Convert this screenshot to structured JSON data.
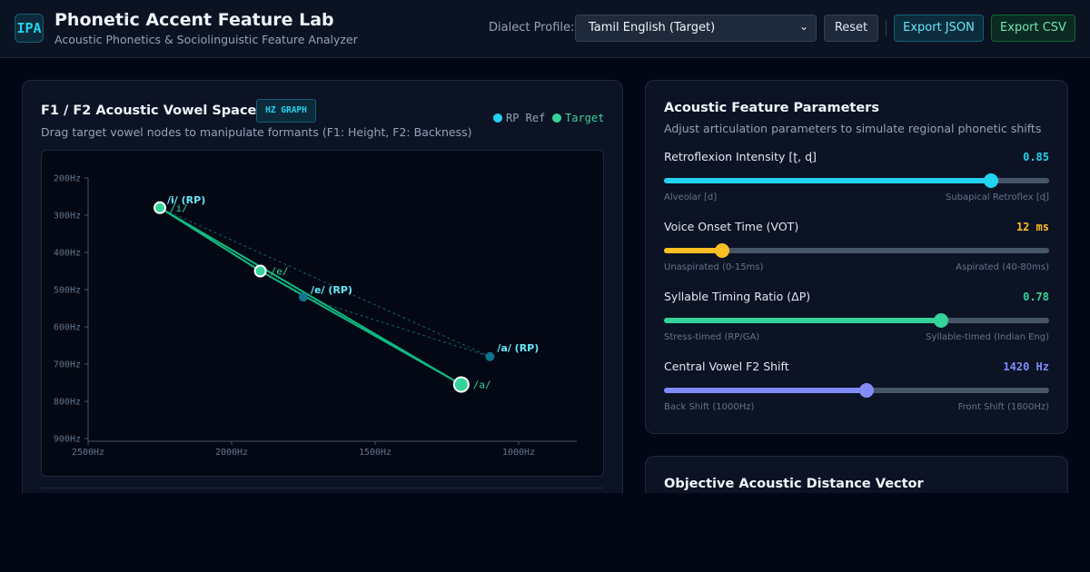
{
  "header": {
    "logo": "IPA",
    "title": "Phonetic Accent Feature Lab",
    "subtitle": "Acoustic Phonetics & Sociolinguistic Feature Analyzer",
    "dialect_label": "Dialect Profile:",
    "dialect_value": "Tamil English (Target)",
    "reset": "Reset",
    "export_json": "Export JSON",
    "export_csv": "Export CSV"
  },
  "vowel_panel": {
    "title": "F1 / F2 Acoustic Vowel Space",
    "badge": "HZ GRAPH",
    "description": "Drag target vowel nodes to manipulate formants (F1: Height, F2: Backness)",
    "legend_rp": "RP Ref",
    "legend_target": "Target"
  },
  "chart_data": {
    "type": "scatter",
    "x_axis": {
      "ticks": [
        "2500Hz",
        "2000Hz",
        "1500Hz",
        "1000Hz"
      ],
      "tick_values": [
        2500,
        2000,
        1500,
        1000
      ],
      "range": [
        2500,
        800
      ],
      "reversed": true
    },
    "y_axis": {
      "ticks": [
        "200Hz",
        "300Hz",
        "400Hz",
        "500Hz",
        "600Hz",
        "700Hz",
        "800Hz",
        "900Hz"
      ],
      "tick_values": [
        200,
        300,
        400,
        500,
        600,
        700,
        800,
        900
      ],
      "range": [
        180,
        900
      ],
      "reversed": true
    },
    "series": [
      {
        "name": "RP Ref",
        "color": "#0e7490",
        "points": [
          {
            "label": "/i/ (RP)",
            "f2": 2250,
            "f1": 280
          },
          {
            "label": "/e/ (RP)",
            "f2": 1750,
            "f1": 520
          },
          {
            "label": "/a/ (RP)",
            "f2": 1100,
            "f1": 680
          }
        ]
      },
      {
        "name": "Target",
        "color": "#34d399",
        "points": [
          {
            "label": "/i/",
            "f2": 2250,
            "f1": 280
          },
          {
            "label": "/e/",
            "f2": 1900,
            "f1": 450
          },
          {
            "label": "/a/",
            "f2": 1200,
            "f1": 755
          }
        ]
      }
    ]
  },
  "params_panel": {
    "title": "Acoustic Feature Parameters",
    "description": "Adjust articulation parameters to simulate regional phonetic shifts",
    "params": [
      {
        "label": "Retroflexion Intensity [ʈ, ɖ]",
        "value": "0.85",
        "fraction": 0.85,
        "color": "#22d3ee",
        "min_label": "Alveolar [d]",
        "max_label": "Subapical Retroflex [ɖ]"
      },
      {
        "label": "Voice Onset Time (VOT)",
        "value": "12 ms",
        "fraction": 0.15,
        "color": "#fbbf24",
        "min_label": "Unaspirated (0-15ms)",
        "max_label": "Aspirated (40-80ms)"
      },
      {
        "label": "Syllable Timing Ratio (ΔP)",
        "value": "0.78",
        "fraction": 0.72,
        "color": "#34d399",
        "min_label": "Stress-timed (RP/GA)",
        "max_label": "Syllable-timed (Indian Eng)"
      },
      {
        "label": "Central Vowel F2 Shift",
        "value": "1420 Hz",
        "fraction": 0.525,
        "color": "#818cf8",
        "min_label": "Back Shift (1000Hz)",
        "max_label": "Front Shift (1800Hz)"
      }
    ]
  },
  "distance_panel": {
    "title": "Objective Acoustic Distance Vector"
  }
}
